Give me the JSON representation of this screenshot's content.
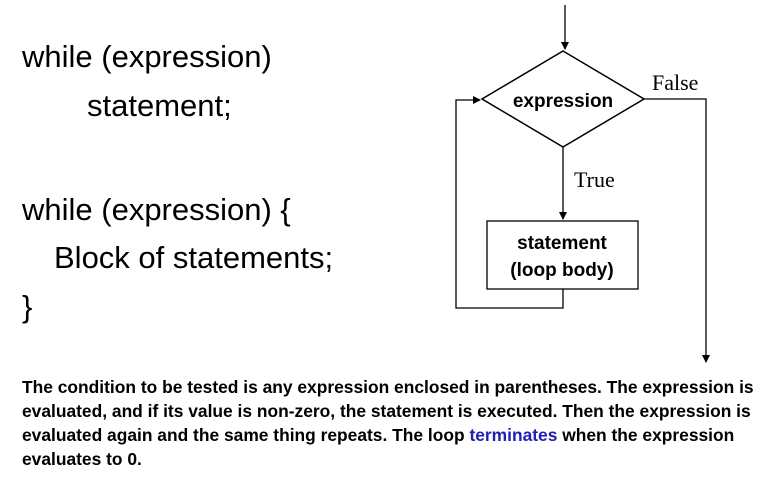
{
  "code": {
    "simple": {
      "header": "while (expression)",
      "statement": "statement;"
    },
    "block": {
      "header": "while (expression) {",
      "body": "Block of statements;",
      "closing": "}"
    }
  },
  "flowchart": {
    "condition_label": "expression",
    "false_label": "False",
    "true_label": "True",
    "body_line1": "statement",
    "body_line2": "(loop body)"
  },
  "description": {
    "before_highlight": "The condition to be tested is any expression enclosed in parentheses. The expression is evaluated, and if its value is non-zero, the statement is executed. Then the expression is evaluated again and the same thing repeats. The loop ",
    "highlight": "terminates",
    "after_highlight": " when the expression evaluates to 0.",
    "highlight_color": "#1f1fb4"
  }
}
